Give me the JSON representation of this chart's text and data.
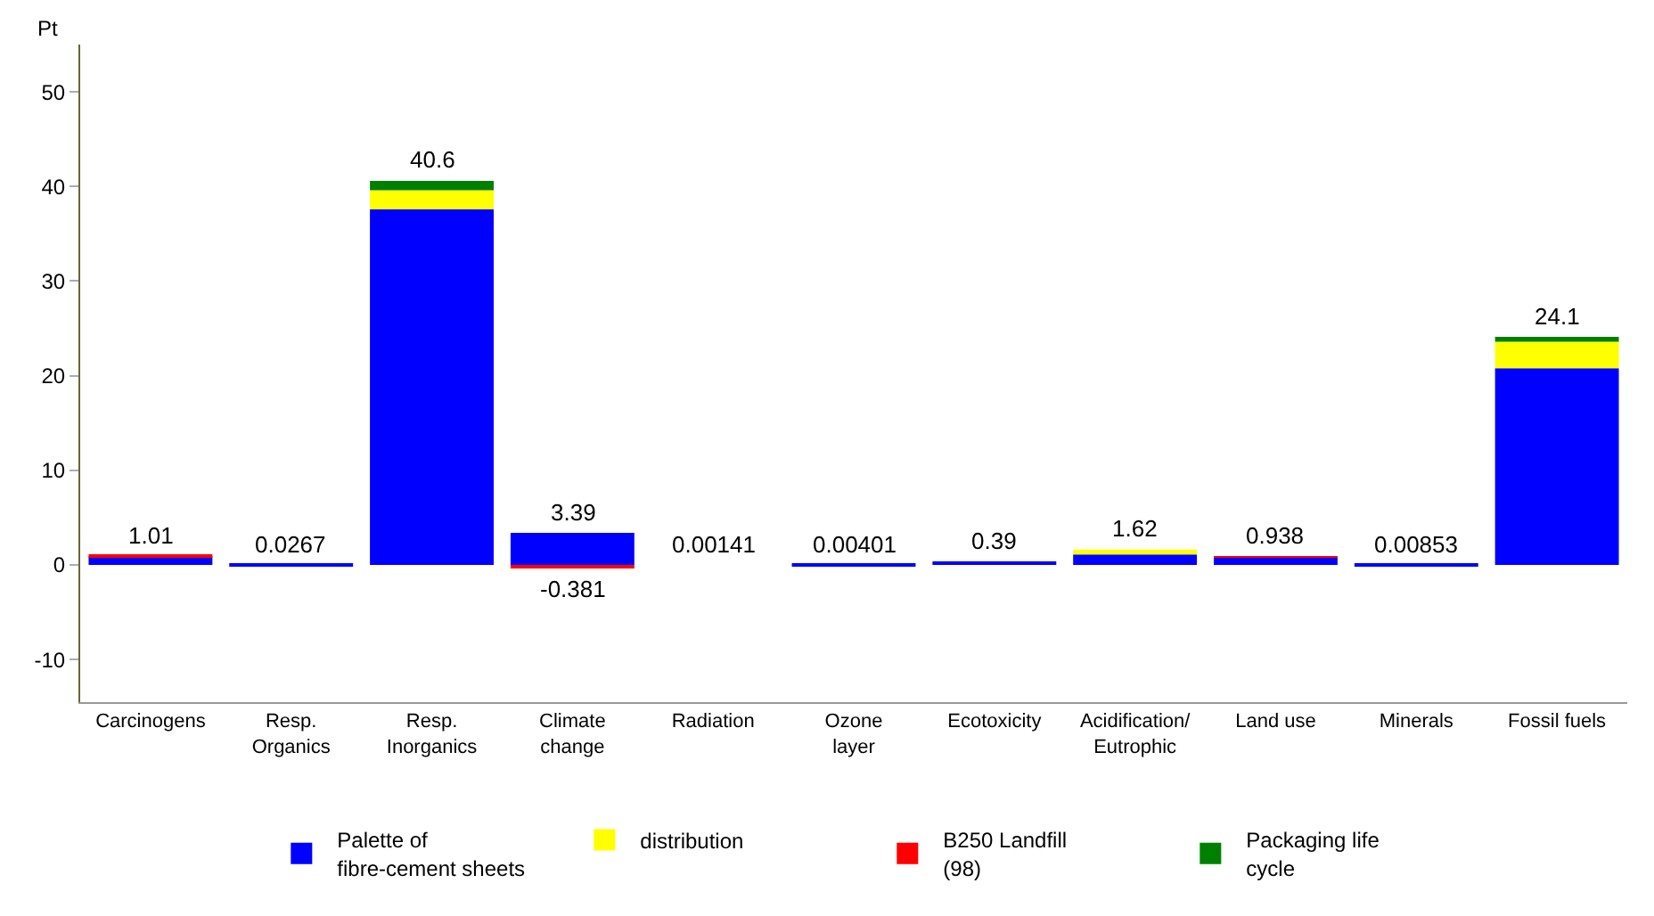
{
  "chart_data": {
    "type": "bar",
    "stacked": true,
    "ylabel": "Pt",
    "categories": [
      "Carcinogens",
      "Resp.\nOrganics",
      "Resp.\nInorganics",
      "Climate\nchange",
      "Radiation",
      "Ozone\nlayer",
      "Ecotoxicity",
      "Acidification/\nEutrophic",
      "Land use",
      "Minerals",
      "Fossil fuels"
    ],
    "series": [
      {
        "name": "Palette of\nfibre-cement sheets",
        "color": "#0000ff",
        "values": [
          0.9,
          0.0267,
          37.6,
          3.39,
          0.00141,
          0.00401,
          0.39,
          1.1,
          0.85,
          0.00853,
          20.8
        ]
      },
      {
        "name": "distribution",
        "color": "#ffff00",
        "values": [
          null,
          null,
          2.0,
          null,
          null,
          null,
          null,
          0.52,
          null,
          null,
          2.8
        ]
      },
      {
        "name": "B250 Landfill\n(98)",
        "color": "#ff0000",
        "values": [
          0.11,
          null,
          null,
          -0.381,
          null,
          null,
          null,
          null,
          0.088,
          null,
          null
        ]
      },
      {
        "name": "Packaging life\ncycle",
        "color": "#008000",
        "values": [
          null,
          null,
          1.0,
          null,
          null,
          null,
          null,
          null,
          null,
          null,
          0.5
        ]
      }
    ],
    "totals": [
      "1.01",
      "0.0267",
      "40.6",
      null,
      "0.00141",
      "0.00401",
      "0.39",
      "1.62",
      "0.938",
      "0.00853",
      "24.1"
    ],
    "annotations": [
      {
        "text": "3.39",
        "x": "Climate\nchange",
        "y": 3.39
      },
      {
        "text": "-0.381",
        "x": "Climate\nchange",
        "y": -0.381
      }
    ],
    "ylim": [
      -14.5,
      55
    ],
    "yticks": [
      -10,
      0,
      10,
      20,
      30,
      40,
      50
    ],
    "legend": "bottom"
  }
}
